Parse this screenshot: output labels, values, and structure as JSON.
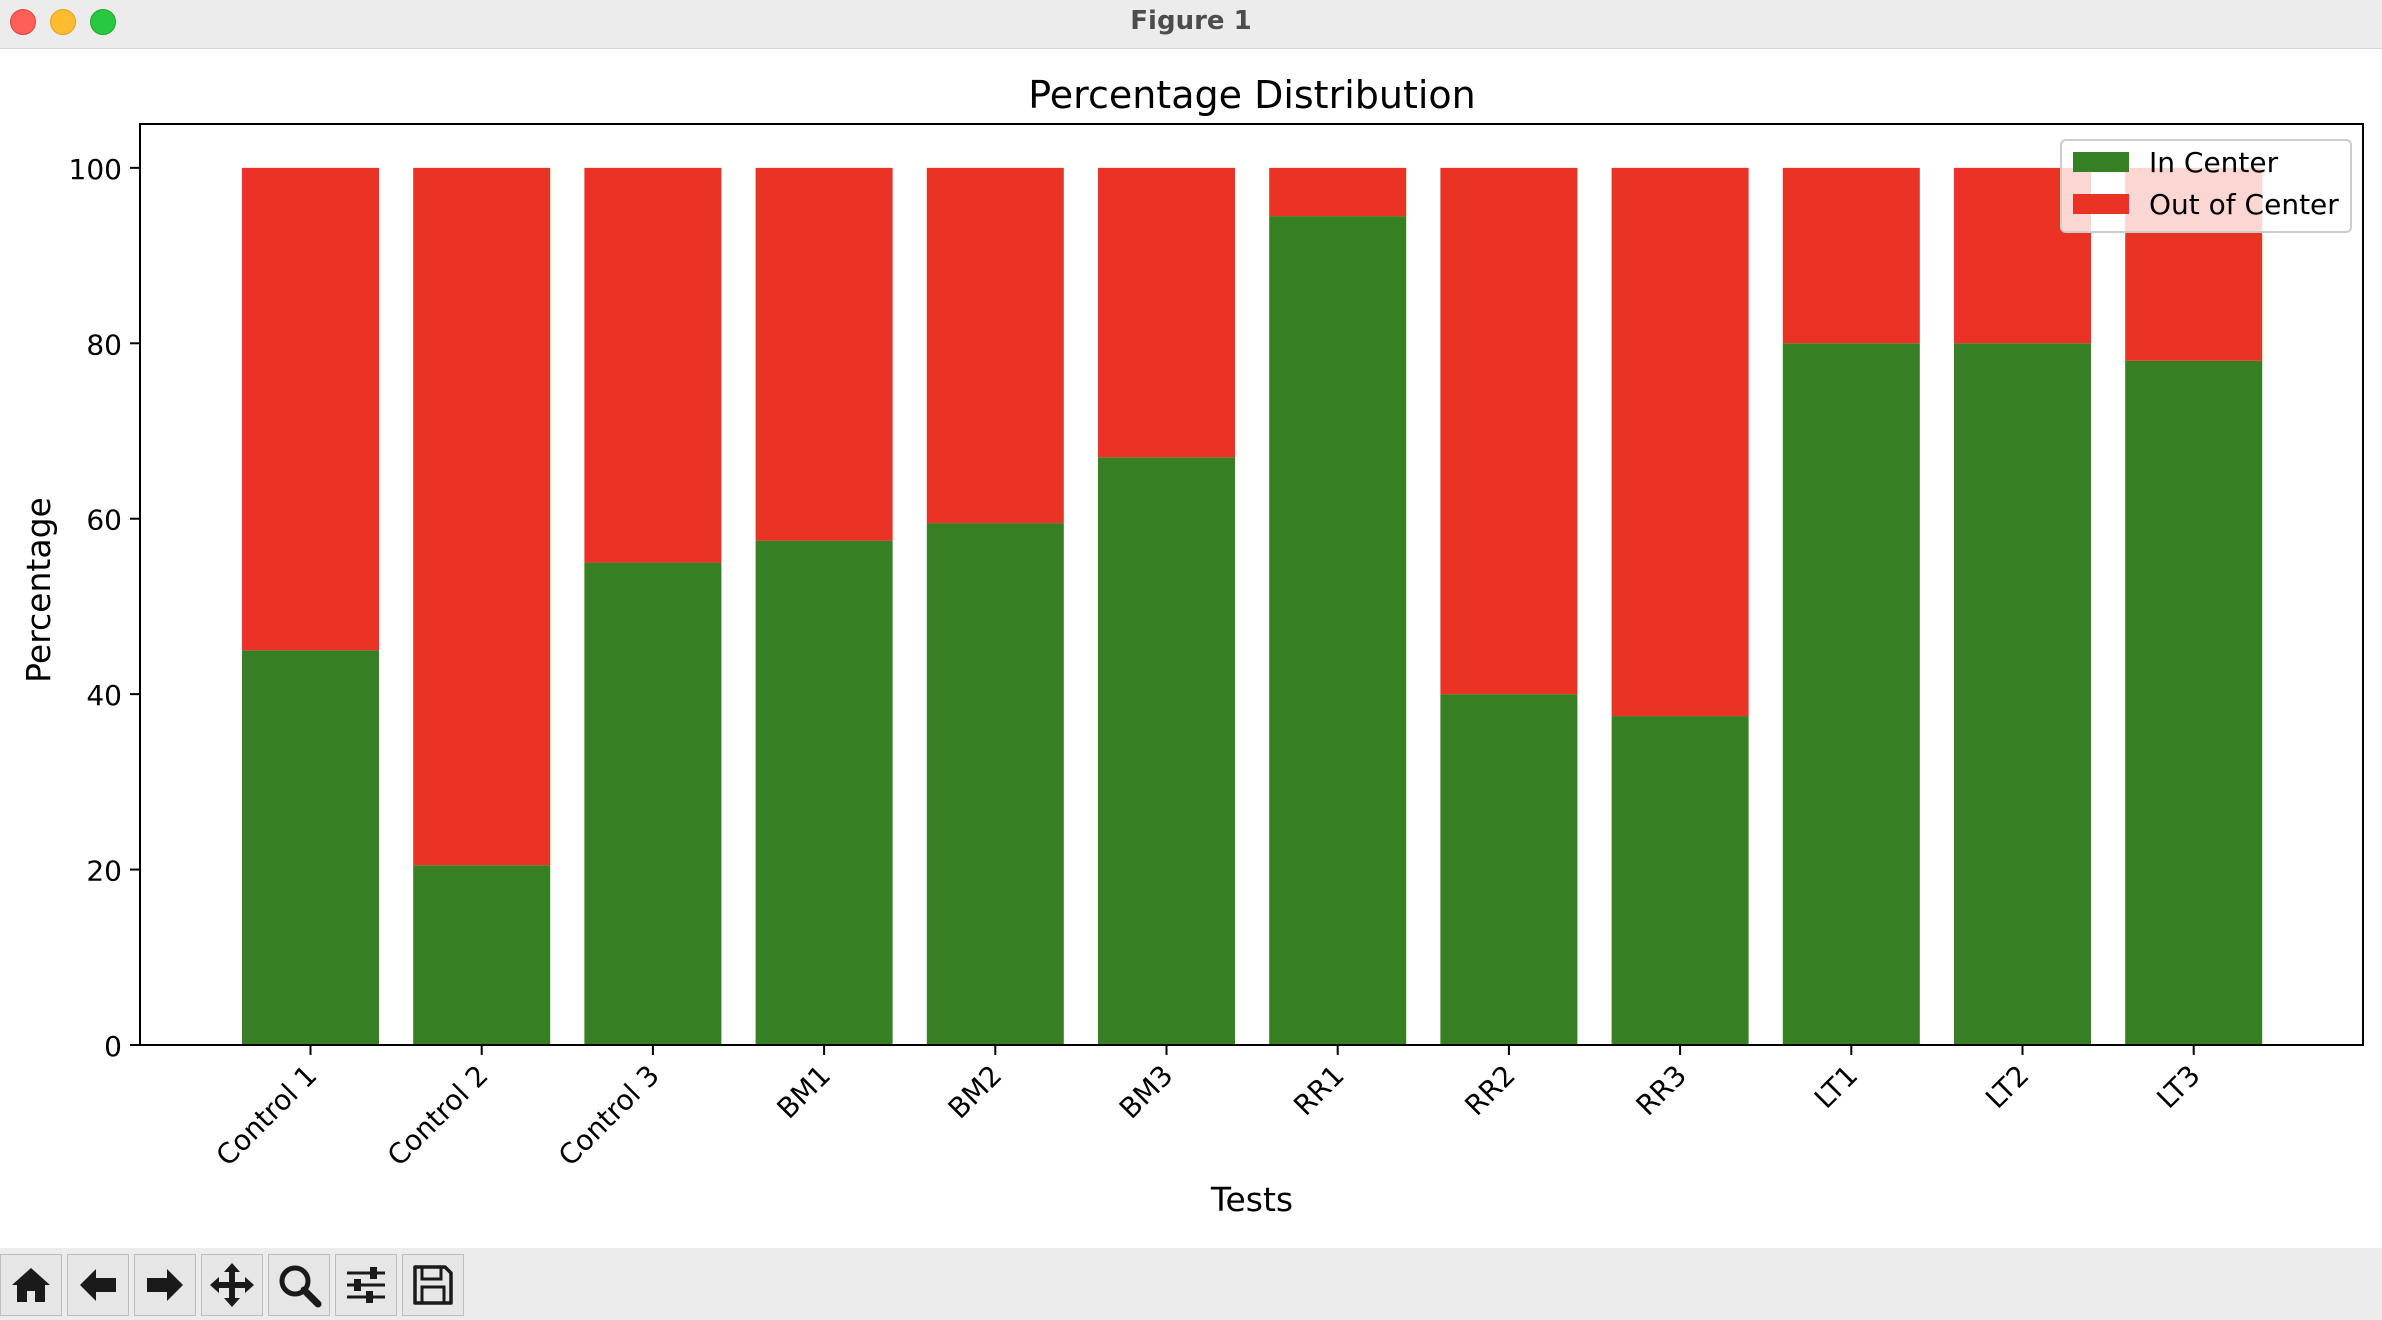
{
  "window": {
    "title": "Figure 1"
  },
  "toolbar": {
    "tools": [
      {
        "icon": "home-icon"
      },
      {
        "icon": "arrow-left-icon"
      },
      {
        "icon": "arrow-right-icon"
      },
      {
        "icon": "move-icon"
      },
      {
        "icon": "zoom-icon"
      },
      {
        "icon": "sliders-icon"
      },
      {
        "icon": "save-icon"
      }
    ]
  },
  "chart_data": {
    "type": "bar",
    "stacked": true,
    "title": "Percentage Distribution",
    "xlabel": "Tests",
    "ylabel": "Percentage",
    "ylim": [
      0,
      105
    ],
    "yticks": [
      0,
      20,
      40,
      60,
      80,
      100
    ],
    "categories": [
      "Control 1",
      "Control 2",
      "Control 3",
      "BM1",
      "BM2",
      "BM3",
      "RR1",
      "RR2",
      "RR3",
      "LT1",
      "LT2",
      "LT3"
    ],
    "series": [
      {
        "name": "In Center",
        "color": "#367f22",
        "values": [
          45,
          20.5,
          55,
          57.5,
          59.5,
          67,
          94.5,
          40,
          37.5,
          80,
          80,
          78
        ]
      },
      {
        "name": "Out of Center",
        "color": "#ea3324",
        "values": [
          55,
          79.5,
          45,
          42.5,
          40.5,
          33,
          5.5,
          60,
          62.5,
          20,
          20,
          22
        ]
      }
    ],
    "legend": "top-right",
    "grid": false
  }
}
